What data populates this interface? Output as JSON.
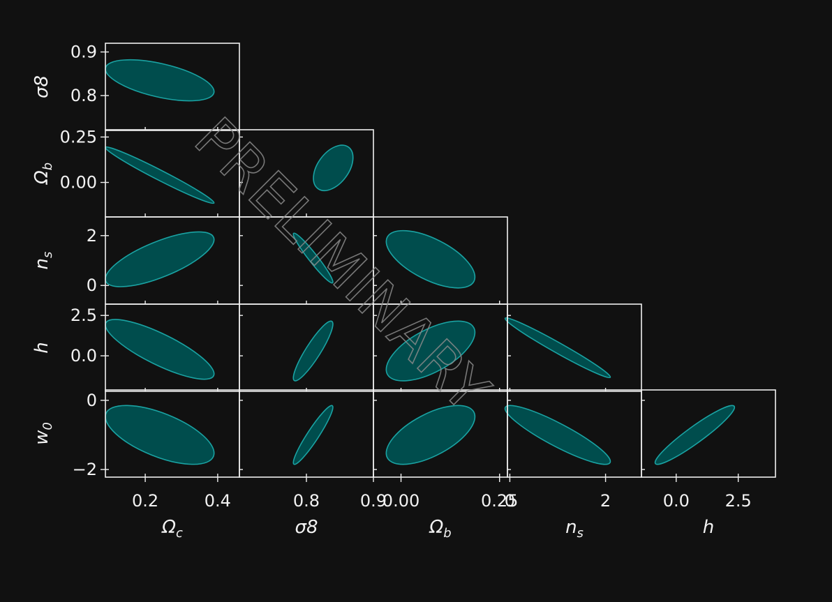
{
  "chart_data": {
    "type": "scatter",
    "subtype": "corner-plot-confidence-ellipses",
    "title": "",
    "watermark": "PRELIMINARY",
    "colors": {
      "background": "#111111",
      "frame": "#f0f0f0",
      "ellipse_fill": "#004d4d",
      "ellipse_edge": "#1aa3a3",
      "watermark": "#8a8a8a"
    },
    "parameters": [
      {
        "key": "omega_c",
        "label_main": "Ω",
        "label_sub": "c"
      },
      {
        "key": "sigma8",
        "label_main": "σ8",
        "label_sub": ""
      },
      {
        "key": "omega_b",
        "label_main": "Ω",
        "label_sub": "b"
      },
      {
        "key": "n_s",
        "label_main": "n",
        "label_sub": "s"
      },
      {
        "key": "h",
        "label_main": "h",
        "label_sub": ""
      },
      {
        "key": "w_0",
        "label_main": "w",
        "label_sub": "0"
      }
    ],
    "columns": [
      {
        "param": "omega_c",
        "range": [
          0.09,
          0.46
        ],
        "ticks": [
          {
            "v": 0.2,
            "label": "0.2"
          },
          {
            "v": 0.4,
            "label": "0.4"
          }
        ]
      },
      {
        "param": "sigma8",
        "range": [
          0.7,
          0.9
        ],
        "ticks": [
          {
            "v": 0.8,
            "label": "0.8"
          },
          {
            "v": 0.9,
            "label": "0.9"
          }
        ]
      },
      {
        "param": "omega_b",
        "range": [
          -0.07,
          0.27
        ],
        "ticks": [
          {
            "v": 0.0,
            "label": "0.00"
          },
          {
            "v": 0.25,
            "label": "0.25"
          }
        ]
      },
      {
        "param": "n_s",
        "range": [
          -0.05,
          2.75
        ],
        "ticks": [
          {
            "v": 0,
            "label": "0"
          },
          {
            "v": 2,
            "label": "2"
          }
        ]
      },
      {
        "param": "h",
        "range": [
          -1.4,
          4.0
        ],
        "ticks": [
          {
            "v": 0.0,
            "label": "0.0"
          },
          {
            "v": 2.5,
            "label": "2.5"
          }
        ]
      }
    ],
    "rows": [
      {
        "param": "sigma8",
        "range": [
          0.72,
          0.92
        ],
        "ticks": [
          {
            "v": 0.8,
            "label": "0.8"
          },
          {
            "v": 0.9,
            "label": "0.9"
          }
        ]
      },
      {
        "param": "omega_b",
        "range": [
          -0.19,
          0.29
        ],
        "ticks": [
          {
            "v": 0.0,
            "label": "0.00"
          },
          {
            "v": 0.25,
            "label": "0.25"
          }
        ]
      },
      {
        "param": "n_s",
        "range": [
          -0.75,
          2.75
        ],
        "ticks": [
          {
            "v": 0,
            "label": "0"
          },
          {
            "v": 2,
            "label": "2"
          }
        ]
      },
      {
        "param": "h",
        "range": [
          -2.2,
          3.2
        ],
        "ticks": [
          {
            "v": 0.0,
            "label": "0.0"
          },
          {
            "v": 2.5,
            "label": "2.5"
          }
        ]
      },
      {
        "param": "w_0",
        "range": [
          -2.22,
          0.3
        ],
        "ticks": [
          {
            "v": 0,
            "label": "0"
          },
          {
            "v": -2,
            "label": "−2"
          }
        ]
      }
    ],
    "ellipses": [
      {
        "row": 0,
        "col": 0,
        "center": [
          0.24,
          0.835
        ],
        "half_width": [
          0.15,
          0.047
        ],
        "corr": -0.55
      },
      {
        "row": 1,
        "col": 0,
        "center": [
          0.24,
          0.04
        ],
        "half_width": [
          0.15,
          0.155
        ],
        "corr": -0.98
      },
      {
        "row": 1,
        "col": 1,
        "center": [
          0.84,
          0.08
        ],
        "half_width": [
          0.0295,
          0.125
        ],
        "corr": 0.45
      },
      {
        "row": 2,
        "col": 0,
        "center": [
          0.24,
          1.05
        ],
        "half_width": [
          0.15,
          1.1
        ],
        "corr": 0.72
      },
      {
        "row": 2,
        "col": 1,
        "center": [
          0.81,
          1.1
        ],
        "half_width": [
          0.0295,
          1.0
        ],
        "corr": -0.96
      },
      {
        "row": 2,
        "col": 2,
        "center": [
          0.075,
          1.05
        ],
        "half_width": [
          0.1125,
          1.15
        ],
        "corr": -0.62
      },
      {
        "row": 3,
        "col": 0,
        "center": [
          0.24,
          0.4
        ],
        "half_width": [
          0.15,
          1.85
        ],
        "corr": -0.82
      },
      {
        "row": 3,
        "col": 1,
        "center": [
          0.81,
          0.3
        ],
        "half_width": [
          0.0295,
          1.85
        ],
        "corr": 0.9
      },
      {
        "row": 3,
        "col": 2,
        "center": [
          0.075,
          0.3
        ],
        "half_width": [
          0.1125,
          1.85
        ],
        "corr": 0.62
      },
      {
        "row": 3,
        "col": 3,
        "center": [
          1.0,
          0.5
        ],
        "half_width": [
          1.1,
          1.85
        ],
        "corr": -0.98
      },
      {
        "row": 4,
        "col": 0,
        "center": [
          0.24,
          -1.0
        ],
        "half_width": [
          0.15,
          0.85
        ],
        "corr": -0.62
      },
      {
        "row": 4,
        "col": 1,
        "center": [
          0.81,
          -1.0
        ],
        "half_width": [
          0.0295,
          0.85
        ],
        "corr": 0.94
      },
      {
        "row": 4,
        "col": 2,
        "center": [
          0.075,
          -1.0
        ],
        "half_width": [
          0.1125,
          0.85
        ],
        "corr": 0.62
      },
      {
        "row": 4,
        "col": 3,
        "center": [
          1.0,
          -1.0
        ],
        "half_width": [
          1.1,
          0.85
        ],
        "corr": -0.9
      },
      {
        "row": 4,
        "col": 4,
        "center": [
          0.75,
          -1.0
        ],
        "half_width": [
          1.6,
          0.85
        ],
        "corr": 0.94
      }
    ],
    "grid": false,
    "legend": "none"
  }
}
